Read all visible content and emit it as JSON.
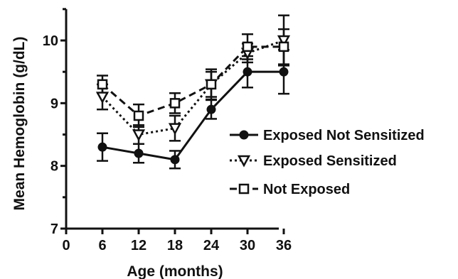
{
  "chart_data": {
    "type": "line",
    "title": "",
    "xlabel": "Age (months)",
    "ylabel": "Mean Hemoglobin (g/dL)",
    "xlim": [
      0,
      36
    ],
    "ylim": [
      7,
      10.5
    ],
    "x_ticks": [
      "0",
      "6",
      "12",
      "18",
      "24",
      "30",
      "36"
    ],
    "y_ticks": [
      "7",
      "8",
      "9",
      "10"
    ],
    "grid": false,
    "legend_position": "right",
    "error_bars": true,
    "x": [
      6,
      12,
      18,
      24,
      30,
      36
    ],
    "series": [
      {
        "name": "Exposed Not Sensitized",
        "values": [
          8.3,
          8.2,
          8.1,
          8.9,
          9.5,
          9.5
        ],
        "error": [
          0.22,
          0.15,
          0.14,
          0.15,
          0.25,
          0.35
        ],
        "marker": "filled-circle",
        "line_style": "solid",
        "color": "#111111"
      },
      {
        "name": "Exposed Sensitized",
        "values": [
          9.1,
          8.5,
          8.6,
          9.3,
          9.8,
          10.0
        ],
        "error": [
          0.2,
          0.15,
          0.2,
          0.2,
          0.15,
          0.4
        ],
        "marker": "open-triangle-down",
        "line_style": "dotted",
        "color": "#111111"
      },
      {
        "name": "Not Exposed",
        "values": [
          9.3,
          8.8,
          9.0,
          9.3,
          9.9,
          9.9
        ],
        "error": [
          0.14,
          0.18,
          0.16,
          0.24,
          0.2,
          0.28
        ],
        "marker": "open-square",
        "line_style": "dashed",
        "color": "#111111"
      }
    ]
  }
}
